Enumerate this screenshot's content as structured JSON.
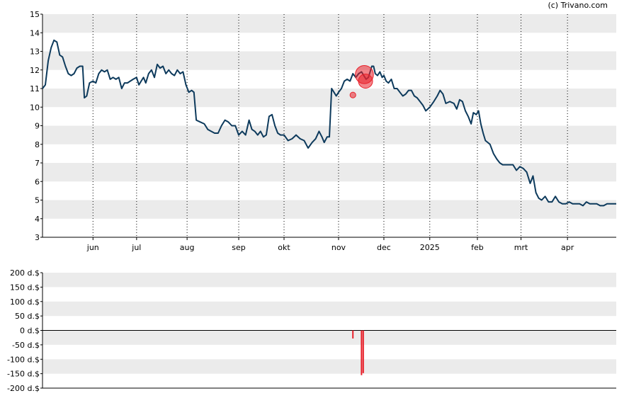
{
  "credit": "(c) Trivano.com",
  "colors": {
    "line": "#0d3a5c",
    "band": "#ebebeb",
    "marker": "#e8202a",
    "bar": "#e8202a",
    "axis": "#000000",
    "grid_vertical": "#000000"
  },
  "chart_data": [
    {
      "type": "line",
      "ylim": [
        3,
        15
      ],
      "y_ticks": [
        "3",
        "4",
        "5",
        "6",
        "7",
        "8",
        "9",
        "10",
        "11",
        "12",
        "13",
        "14",
        "15"
      ],
      "x_ticks": [
        "jun",
        "jul",
        "aug",
        "sep",
        "okt",
        "nov",
        "dec",
        "2025",
        "feb",
        "mrt",
        "apr"
      ],
      "x_tick_pos": [
        0.088,
        0.164,
        0.252,
        0.342,
        0.421,
        0.516,
        0.595,
        0.675,
        0.758,
        0.834,
        0.915
      ],
      "grid": "horizontal bands + dotted verticals",
      "series_points": [
        [
          0.0,
          11.0
        ],
        [
          0.005,
          11.2
        ],
        [
          0.01,
          12.5
        ],
        [
          0.015,
          13.2
        ],
        [
          0.02,
          13.6
        ],
        [
          0.025,
          13.5
        ],
        [
          0.03,
          12.8
        ],
        [
          0.035,
          12.7
        ],
        [
          0.04,
          12.2
        ],
        [
          0.045,
          11.8
        ],
        [
          0.05,
          11.7
        ],
        [
          0.055,
          11.8
        ],
        [
          0.06,
          12.1
        ],
        [
          0.065,
          12.2
        ],
        [
          0.07,
          12.2
        ],
        [
          0.073,
          10.5
        ],
        [
          0.077,
          10.6
        ],
        [
          0.082,
          11.3
        ],
        [
          0.088,
          11.4
        ],
        [
          0.093,
          11.3
        ],
        [
          0.098,
          11.8
        ],
        [
          0.103,
          12.0
        ],
        [
          0.108,
          11.9
        ],
        [
          0.113,
          12.0
        ],
        [
          0.118,
          11.5
        ],
        [
          0.123,
          11.6
        ],
        [
          0.128,
          11.5
        ],
        [
          0.133,
          11.6
        ],
        [
          0.138,
          11.0
        ],
        [
          0.143,
          11.3
        ],
        [
          0.148,
          11.3
        ],
        [
          0.153,
          11.4
        ],
        [
          0.158,
          11.5
        ],
        [
          0.164,
          11.6
        ],
        [
          0.168,
          11.2
        ],
        [
          0.172,
          11.4
        ],
        [
          0.176,
          11.6
        ],
        [
          0.18,
          11.3
        ],
        [
          0.185,
          11.8
        ],
        [
          0.19,
          12.0
        ],
        [
          0.195,
          11.6
        ],
        [
          0.2,
          12.3
        ],
        [
          0.205,
          12.1
        ],
        [
          0.21,
          12.2
        ],
        [
          0.215,
          11.8
        ],
        [
          0.22,
          12.0
        ],
        [
          0.225,
          11.8
        ],
        [
          0.23,
          11.7
        ],
        [
          0.235,
          12.0
        ],
        [
          0.24,
          11.8
        ],
        [
          0.245,
          11.9
        ],
        [
          0.25,
          11.2
        ],
        [
          0.255,
          10.8
        ],
        [
          0.26,
          10.9
        ],
        [
          0.264,
          10.8
        ],
        [
          0.268,
          9.3
        ],
        [
          0.275,
          9.2
        ],
        [
          0.282,
          9.1
        ],
        [
          0.288,
          8.8
        ],
        [
          0.294,
          8.7
        ],
        [
          0.3,
          8.6
        ],
        [
          0.306,
          8.6
        ],
        [
          0.312,
          9.0
        ],
        [
          0.318,
          9.3
        ],
        [
          0.324,
          9.2
        ],
        [
          0.33,
          9.0
        ],
        [
          0.336,
          9.0
        ],
        [
          0.342,
          8.5
        ],
        [
          0.348,
          8.7
        ],
        [
          0.354,
          8.5
        ],
        [
          0.36,
          9.3
        ],
        [
          0.365,
          8.8
        ],
        [
          0.37,
          8.7
        ],
        [
          0.375,
          8.5
        ],
        [
          0.38,
          8.7
        ],
        [
          0.385,
          8.4
        ],
        [
          0.39,
          8.5
        ],
        [
          0.395,
          9.5
        ],
        [
          0.4,
          9.6
        ],
        [
          0.405,
          9.0
        ],
        [
          0.41,
          8.6
        ],
        [
          0.415,
          8.5
        ],
        [
          0.421,
          8.5
        ],
        [
          0.428,
          8.2
        ],
        [
          0.435,
          8.3
        ],
        [
          0.442,
          8.5
        ],
        [
          0.449,
          8.3
        ],
        [
          0.456,
          8.2
        ],
        [
          0.463,
          7.8
        ],
        [
          0.47,
          8.1
        ],
        [
          0.476,
          8.3
        ],
        [
          0.482,
          8.7
        ],
        [
          0.487,
          8.4
        ],
        [
          0.491,
          8.1
        ],
        [
          0.496,
          8.4
        ],
        [
          0.5,
          8.4
        ],
        [
          0.504,
          11.0
        ],
        [
          0.508,
          10.8
        ],
        [
          0.512,
          10.6
        ],
        [
          0.516,
          10.8
        ],
        [
          0.521,
          11.0
        ],
        [
          0.526,
          11.4
        ],
        [
          0.531,
          11.5
        ],
        [
          0.536,
          11.4
        ],
        [
          0.541,
          11.8
        ],
        [
          0.546,
          11.6
        ],
        [
          0.551,
          11.8
        ],
        [
          0.556,
          11.9
        ],
        [
          0.56,
          11.7
        ],
        [
          0.564,
          11.5
        ],
        [
          0.568,
          11.6
        ],
        [
          0.571,
          11.9
        ],
        [
          0.574,
          12.2
        ],
        [
          0.577,
          12.2
        ],
        [
          0.58,
          11.8
        ],
        [
          0.584,
          11.7
        ],
        [
          0.588,
          11.9
        ],
        [
          0.592,
          11.6
        ],
        [
          0.595,
          11.7
        ],
        [
          0.599,
          11.4
        ],
        [
          0.603,
          11.3
        ],
        [
          0.608,
          11.5
        ],
        [
          0.613,
          11.0
        ],
        [
          0.618,
          11.0
        ],
        [
          0.623,
          10.8
        ],
        [
          0.628,
          10.6
        ],
        [
          0.633,
          10.7
        ],
        [
          0.638,
          10.9
        ],
        [
          0.643,
          10.9
        ],
        [
          0.648,
          10.6
        ],
        [
          0.653,
          10.5
        ],
        [
          0.658,
          10.3
        ],
        [
          0.663,
          10.1
        ],
        [
          0.668,
          9.8
        ],
        [
          0.675,
          10.0
        ],
        [
          0.682,
          10.3
        ],
        [
          0.688,
          10.6
        ],
        [
          0.693,
          10.9
        ],
        [
          0.698,
          10.7
        ],
        [
          0.703,
          10.2
        ],
        [
          0.71,
          10.3
        ],
        [
          0.717,
          10.2
        ],
        [
          0.722,
          9.9
        ],
        [
          0.727,
          10.4
        ],
        [
          0.732,
          10.3
        ],
        [
          0.737,
          9.8
        ],
        [
          0.742,
          9.5
        ],
        [
          0.747,
          9.1
        ],
        [
          0.751,
          9.7
        ],
        [
          0.756,
          9.6
        ],
        [
          0.76,
          9.8
        ],
        [
          0.764,
          9.1
        ],
        [
          0.768,
          8.6
        ],
        [
          0.772,
          8.2
        ],
        [
          0.776,
          8.1
        ],
        [
          0.78,
          8.0
        ],
        [
          0.786,
          7.5
        ],
        [
          0.792,
          7.2
        ],
        [
          0.797,
          7.0
        ],
        [
          0.802,
          6.9
        ],
        [
          0.808,
          6.9
        ],
        [
          0.814,
          6.9
        ],
        [
          0.82,
          6.9
        ],
        [
          0.826,
          6.6
        ],
        [
          0.832,
          6.8
        ],
        [
          0.838,
          6.7
        ],
        [
          0.844,
          6.5
        ],
        [
          0.85,
          5.9
        ],
        [
          0.855,
          6.3
        ],
        [
          0.86,
          5.4
        ],
        [
          0.865,
          5.1
        ],
        [
          0.87,
          5.0
        ],
        [
          0.876,
          5.2
        ],
        [
          0.882,
          4.9
        ],
        [
          0.888,
          4.9
        ],
        [
          0.894,
          5.2
        ],
        [
          0.9,
          4.9
        ],
        [
          0.906,
          4.8
        ],
        [
          0.912,
          4.8
        ],
        [
          0.918,
          4.9
        ],
        [
          0.924,
          4.8
        ],
        [
          0.93,
          4.8
        ],
        [
          0.936,
          4.8
        ],
        [
          0.942,
          4.7
        ],
        [
          0.948,
          4.9
        ],
        [
          0.954,
          4.8
        ],
        [
          0.96,
          4.8
        ],
        [
          0.966,
          4.8
        ],
        [
          0.972,
          4.7
        ],
        [
          0.978,
          4.7
        ],
        [
          0.984,
          4.8
        ],
        [
          0.99,
          4.8
        ],
        [
          0.995,
          4.8
        ],
        [
          1.0,
          4.8
        ]
      ],
      "markers": [
        {
          "x": 0.561,
          "y": 11.75,
          "size": 1.4
        },
        {
          "x": 0.563,
          "y": 11.4,
          "size": 1.0
        },
        {
          "x": 0.541,
          "y": 10.65,
          "size": 0.15
        }
      ]
    },
    {
      "type": "bar",
      "ylim": [
        -200,
        200
      ],
      "y_ticks": [
        "200 d.$",
        "150 d.$",
        "100 d.$",
        "50 d.$",
        "0 d.$",
        "-50 d.$",
        "-100 d.$",
        "-150 d.$",
        "-200 d.$"
      ],
      "bars": [
        {
          "x": 0.541,
          "value": -28
        },
        {
          "x": 0.556,
          "value": -155
        },
        {
          "x": 0.559,
          "value": -148
        }
      ]
    }
  ]
}
